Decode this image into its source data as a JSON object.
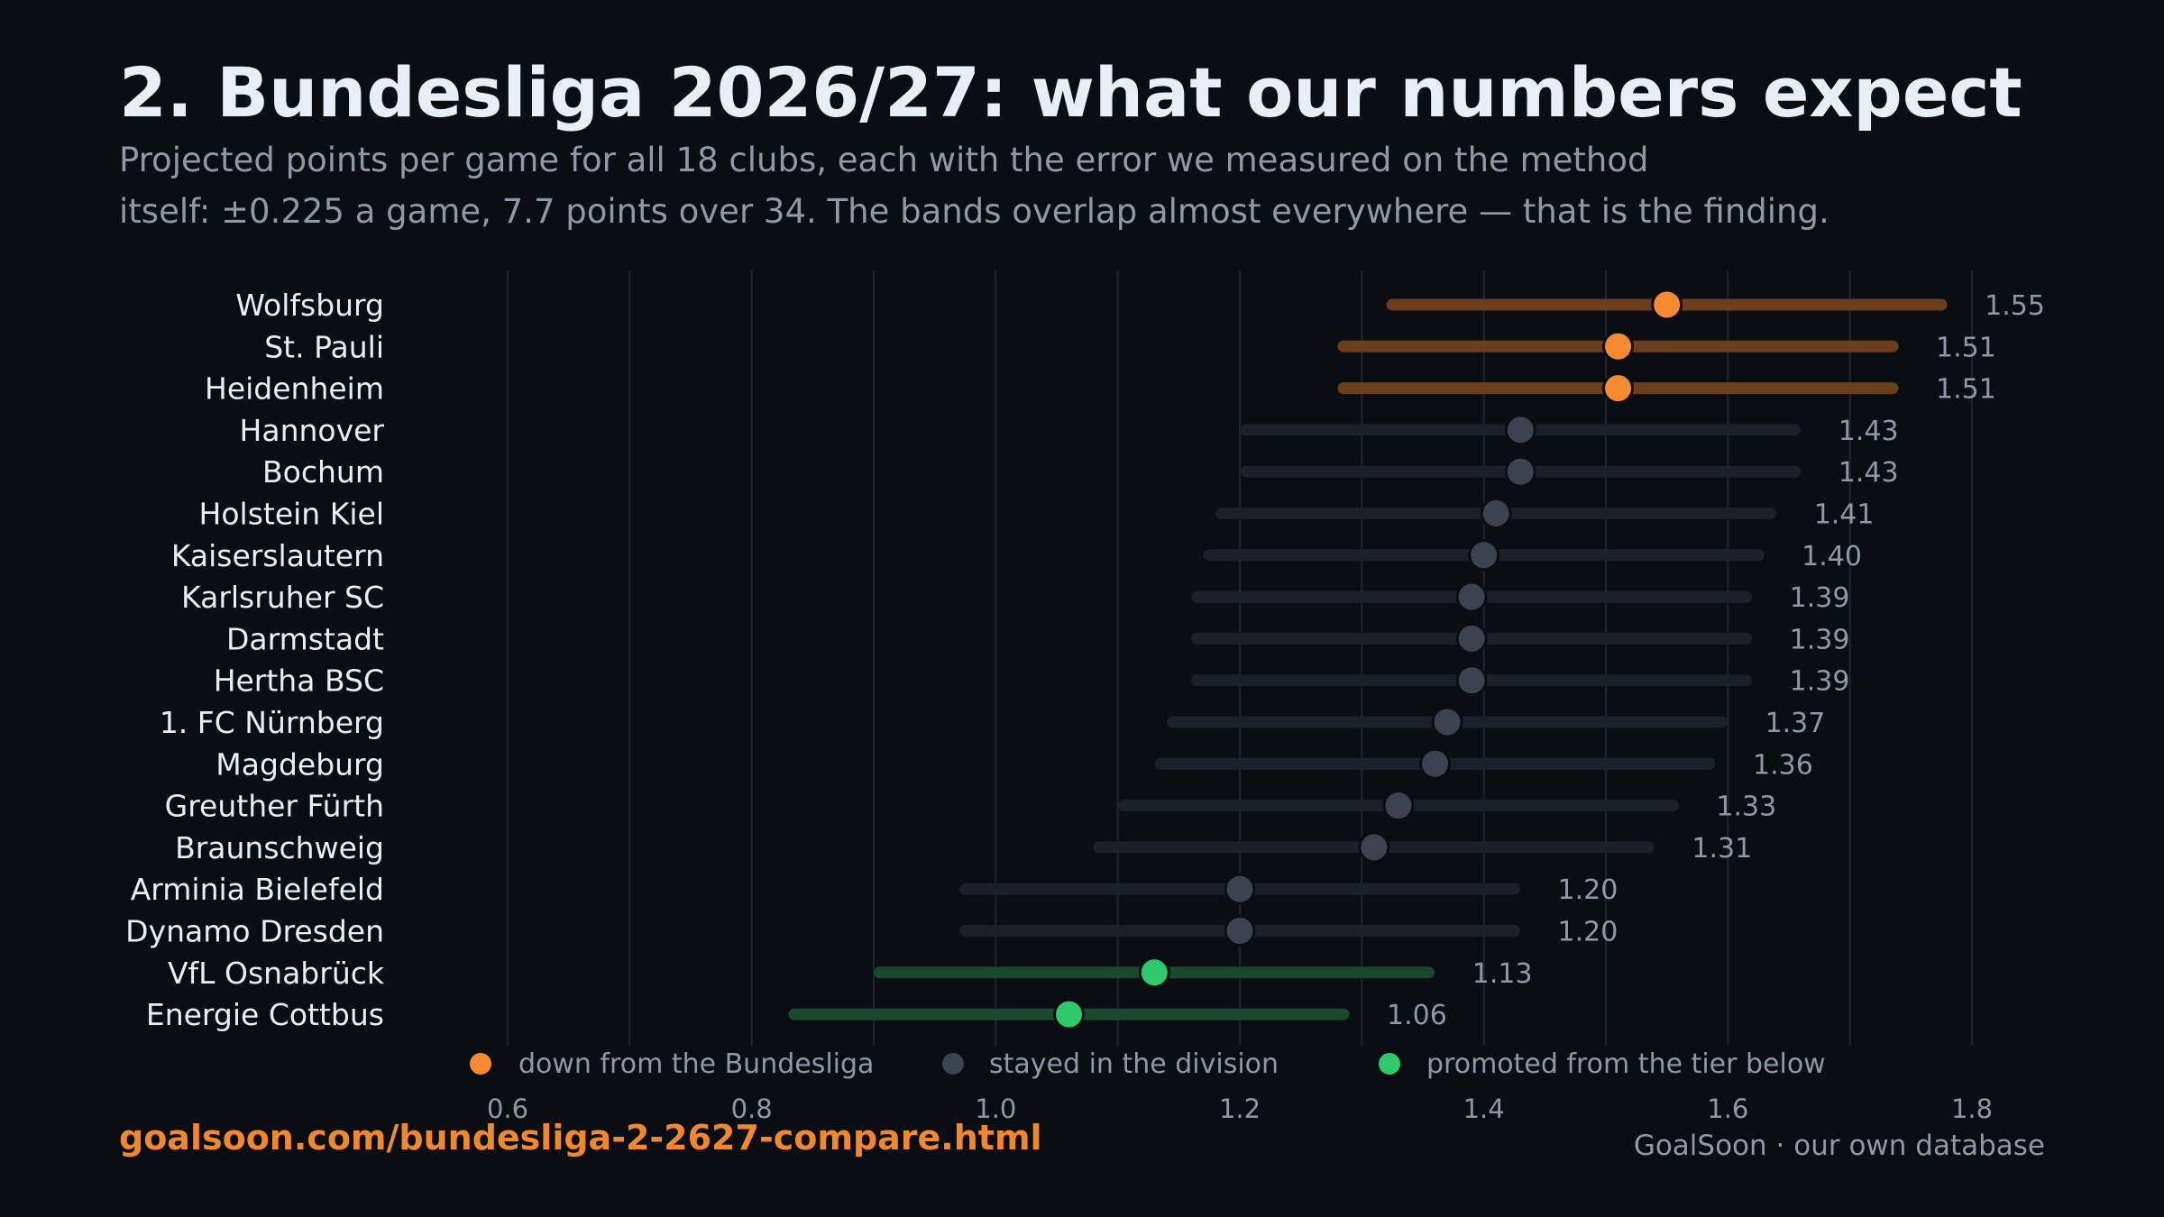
{
  "header": {
    "title": "2. Bundesliga 2026/27: what our numbers expect",
    "subtitle_line1": "Projected points per game for all 18 clubs, each with the error we measured on the method",
    "subtitle_line2": "itself: ±0.225 a game, 7.7 points over 34. The bands overlap almost everywhere — that is the finding."
  },
  "footer": {
    "url": "goalsoon.com/bundesliga-2-2627-compare.html",
    "source": "GoalSoon · our own database"
  },
  "colors": {
    "background": "#0a0d12",
    "relegated": "#f58a30",
    "relegated_band": "#6b3f1e",
    "stayed": "#3a434f",
    "stayed_band": "#1c2129",
    "promoted": "#2ec96b",
    "promoted_band": "#1a4a2e",
    "gridline": "#1f252d",
    "label": "#e8eef6",
    "value_label": "#8f99a6"
  },
  "chart_data": {
    "type": "dot-with-error-band",
    "error_margin": 0.225,
    "xlim": [
      0.6,
      1.8
    ],
    "xticks": [
      "0.6",
      "0.8",
      "1.0",
      "1.2",
      "1.4",
      "1.6",
      "1.8"
    ],
    "legend": [
      {
        "key": "relegated",
        "label": "down from the Bundesliga"
      },
      {
        "key": "stayed",
        "label": "stayed in the division"
      },
      {
        "key": "promoted",
        "label": "promoted from the tier below"
      }
    ],
    "clubs": [
      {
        "name": "Wolfsburg",
        "value": 1.55,
        "label": "1.55",
        "group": "relegated"
      },
      {
        "name": "St. Pauli",
        "value": 1.51,
        "label": "1.51",
        "group": "relegated"
      },
      {
        "name": "Heidenheim",
        "value": 1.51,
        "label": "1.51",
        "group": "relegated"
      },
      {
        "name": "Hannover",
        "value": 1.43,
        "label": "1.43",
        "group": "stayed"
      },
      {
        "name": "Bochum",
        "value": 1.43,
        "label": "1.43",
        "group": "stayed"
      },
      {
        "name": "Holstein Kiel",
        "value": 1.41,
        "label": "1.41",
        "group": "stayed"
      },
      {
        "name": "Kaiserslautern",
        "value": 1.4,
        "label": "1.40",
        "group": "stayed"
      },
      {
        "name": "Karlsruher SC",
        "value": 1.39,
        "label": "1.39",
        "group": "stayed"
      },
      {
        "name": "Darmstadt",
        "value": 1.39,
        "label": "1.39",
        "group": "stayed"
      },
      {
        "name": "Hertha BSC",
        "value": 1.39,
        "label": "1.39",
        "group": "stayed"
      },
      {
        "name": "1. FC Nürnberg",
        "value": 1.37,
        "label": "1.37",
        "group": "stayed"
      },
      {
        "name": "Magdeburg",
        "value": 1.36,
        "label": "1.36",
        "group": "stayed"
      },
      {
        "name": "Greuther Fürth",
        "value": 1.33,
        "label": "1.33",
        "group": "stayed"
      },
      {
        "name": "Braunschweig",
        "value": 1.31,
        "label": "1.31",
        "group": "stayed"
      },
      {
        "name": "Arminia Bielefeld",
        "value": 1.2,
        "label": "1.20",
        "group": "stayed"
      },
      {
        "name": "Dynamo Dresden",
        "value": 1.2,
        "label": "1.20",
        "group": "stayed"
      },
      {
        "name": "VfL Osnabrück",
        "value": 1.13,
        "label": "1.13",
        "group": "promoted"
      },
      {
        "name": "Energie Cottbus",
        "value": 1.06,
        "label": "1.06",
        "group": "promoted"
      }
    ]
  }
}
